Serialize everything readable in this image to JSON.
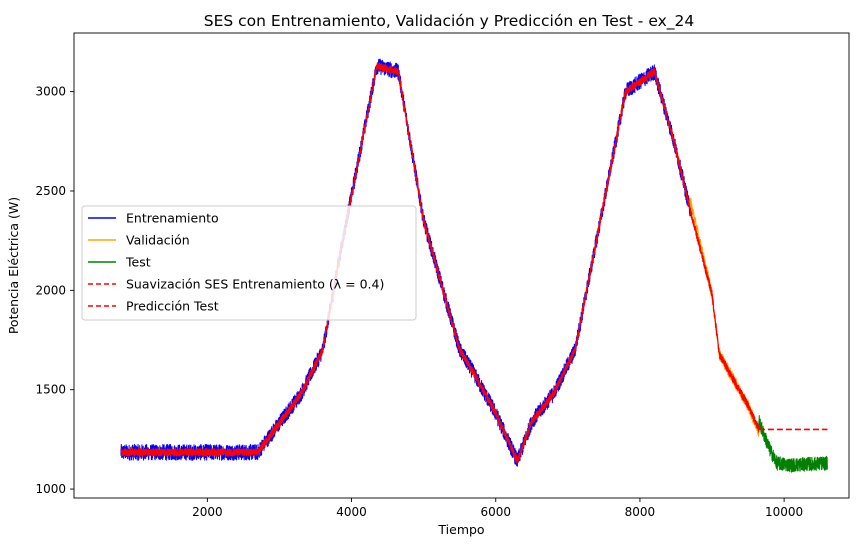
{
  "chart_data": {
    "type": "line",
    "title": "SES con Entrenamiento, Validación y Predicción en Test - ex_24",
    "xlabel": "Tiempo",
    "ylabel": "Potencia Eléctrica (W)",
    "xlim": [
      150,
      10900
    ],
    "ylim": [
      955,
      3295
    ],
    "xticks": [
      2000,
      4000,
      6000,
      8000,
      10000
    ],
    "yticks": [
      1000,
      1500,
      2000,
      2500,
      3000
    ],
    "grid": false,
    "legend_position": "center-left",
    "series": [
      {
        "name": "Entrenamiento",
        "color": "#0000ff",
        "style": "solid",
        "x": [
          800,
          2700,
          3300,
          3600,
          3850,
          4350,
          4650,
          5000,
          5500,
          5700,
          6000,
          6300,
          6500,
          6800,
          7100,
          7800,
          8200,
          8450,
          8700
        ],
        "y": [
          1185,
          1185,
          1480,
          1700,
          2200,
          3130,
          3100,
          2350,
          1700,
          1580,
          1380,
          1140,
          1340,
          1480,
          1700,
          3000,
          3100,
          2780,
          2400
        ],
        "noise": 40
      },
      {
        "name": "Validación",
        "color": "#ffa500",
        "style": "solid",
        "x": [
          8700,
          9000,
          9100,
          9300,
          9500,
          9650
        ],
        "y": [
          2450,
          1980,
          1680,
          1550,
          1420,
          1290
        ],
        "noise": 30
      },
      {
        "name": "Test",
        "color": "#008000",
        "style": "solid",
        "x": [
          9650,
          9800,
          9900,
          10100,
          10300,
          10600
        ],
        "y": [
          1340,
          1200,
          1130,
          1120,
          1125,
          1130
        ],
        "noise": 35
      },
      {
        "name": "Suavización SES Entrenamiento (λ = 0.4)",
        "color": "#ff0000",
        "style": "dashed",
        "x": [
          800,
          2700,
          3300,
          3600,
          3850,
          4350,
          4650,
          5000,
          5500,
          5700,
          6000,
          6300,
          6500,
          6800,
          7100,
          7800,
          8200,
          8450,
          8700,
          9000,
          9100,
          9300,
          9500,
          9650
        ],
        "y": [
          1185,
          1185,
          1480,
          1700,
          2200,
          3130,
          3100,
          2350,
          1700,
          1580,
          1380,
          1140,
          1340,
          1480,
          1700,
          3000,
          3100,
          2780,
          2400,
          1980,
          1680,
          1550,
          1420,
          1300
        ],
        "noise": 18
      },
      {
        "name": "Predicción Test",
        "color": "#ff0000",
        "style": "dashed",
        "x": [
          9650,
          10600
        ],
        "y": [
          1300,
          1300
        ],
        "noise": 0
      }
    ]
  }
}
